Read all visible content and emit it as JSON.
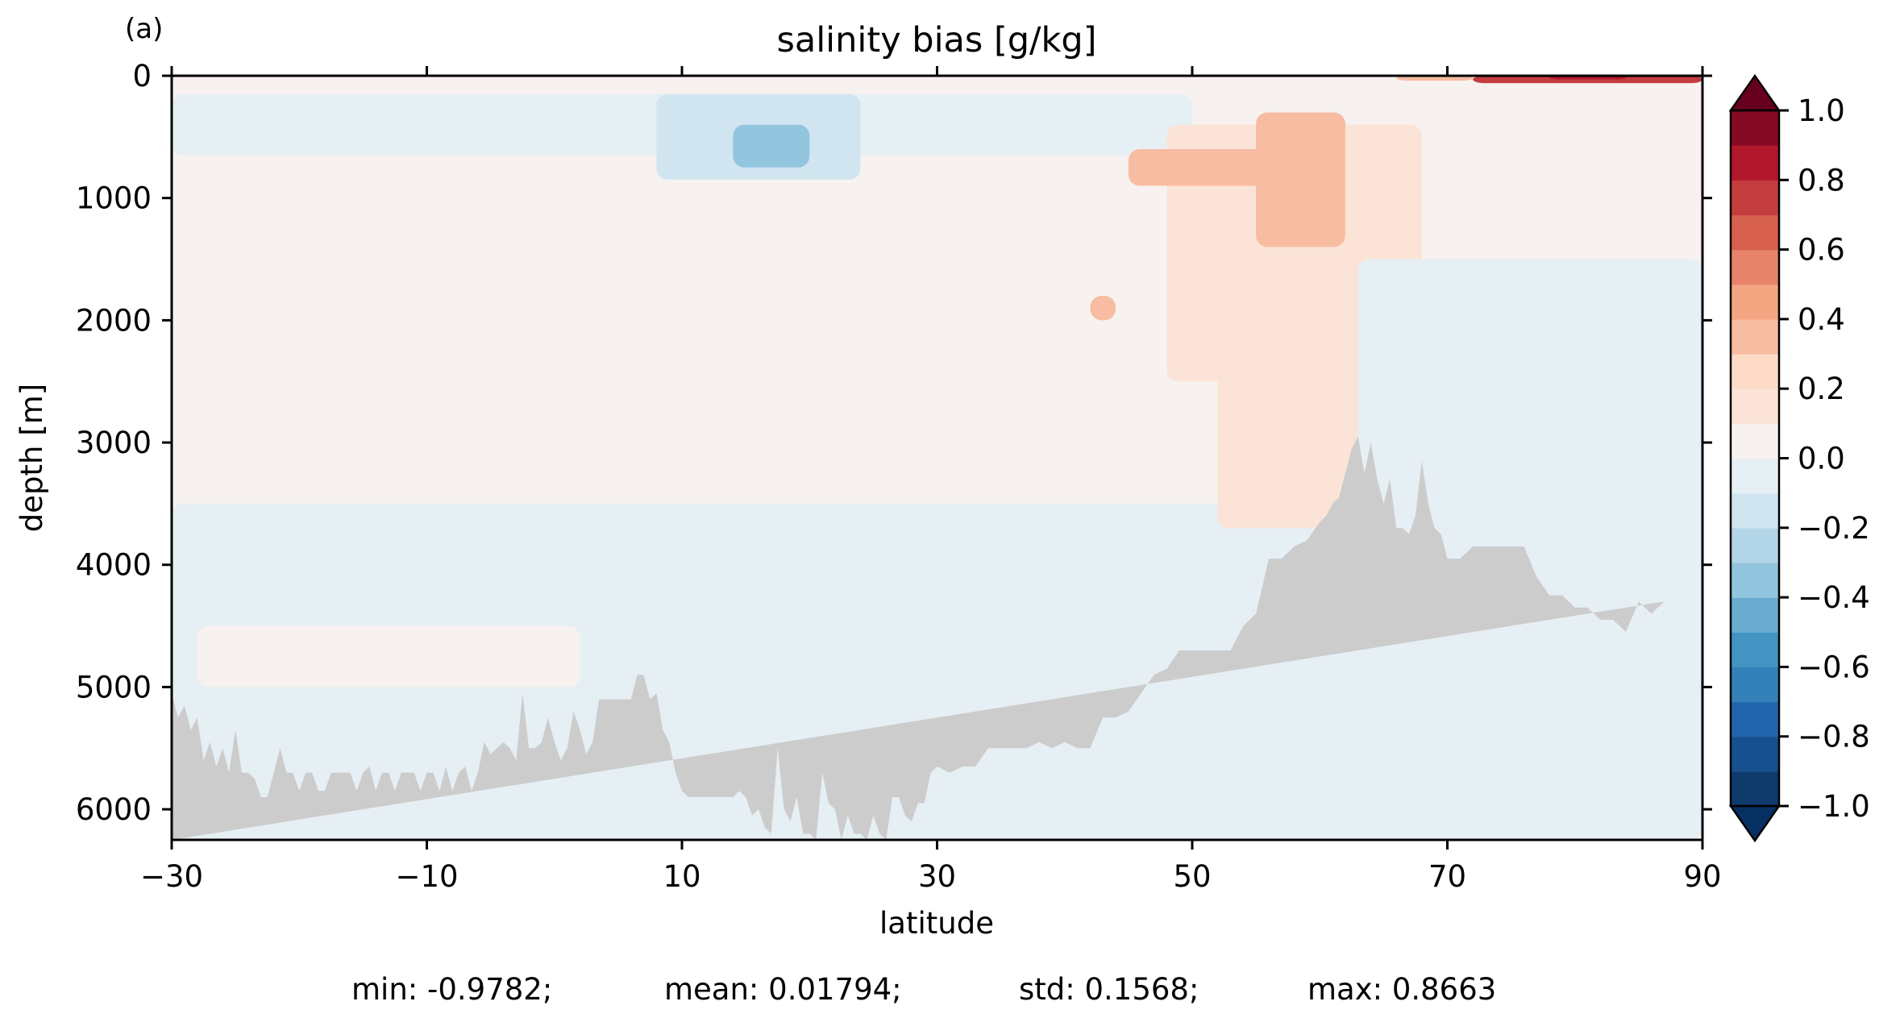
{
  "panel_label": "(a)",
  "chart_data": {
    "type": "heatmap",
    "title": "salinity bias [g/kg]",
    "xlabel": "latitude",
    "ylabel": "depth [m]",
    "xlim": [
      -30,
      90
    ],
    "ylim": [
      6250,
      0
    ],
    "y_inverted": true,
    "xticks": [
      -30,
      -10,
      10,
      30,
      50,
      70,
      90
    ],
    "xtick_labels": [
      "−30",
      "−10",
      "10",
      "30",
      "50",
      "70",
      "90"
    ],
    "yticks": [
      0,
      1000,
      2000,
      3000,
      4000,
      5000,
      6000
    ],
    "ytick_labels": [
      "0",
      "1000",
      "2000",
      "3000",
      "4000",
      "5000",
      "6000"
    ],
    "colorbar": {
      "colormap": "RdBu_r",
      "levels": [
        -1.0,
        -0.9,
        -0.8,
        -0.7,
        -0.6,
        -0.5,
        -0.4,
        -0.3,
        -0.2,
        -0.1,
        0.0,
        0.1,
        0.2,
        0.3,
        0.4,
        0.5,
        0.6,
        0.7,
        0.8,
        0.9,
        1.0
      ],
      "extend": "both",
      "ticks": [
        1.0,
        0.8,
        0.6,
        0.4,
        0.2,
        0.0,
        -0.2,
        -0.4,
        -0.6,
        -0.8,
        -1.0
      ],
      "tick_labels": [
        "1.0",
        "0.8",
        "0.6",
        "0.4",
        "0.2",
        "0.0",
        "−0.2",
        "−0.4",
        "−0.6",
        "−0.8",
        "−1.0"
      ],
      "colors": [
        "#0f3a6c",
        "#17508f",
        "#2166ac",
        "#3480b9",
        "#4393c3",
        "#6aacd0",
        "#92c5de",
        "#b3d5e8",
        "#d1e5f0",
        "#e6eff4",
        "#f7f2ef",
        "#fbe4d7",
        "#fddbc7",
        "#f8bca2",
        "#f4a582",
        "#e7836b",
        "#d6604d",
        "#c33d3f",
        "#b2182b",
        "#870a24"
      ],
      "over_color": "#67001f",
      "under_color": "#053061"
    },
    "land_color": "#cccccc",
    "bathymetry": {
      "lat": [
        -30,
        -29.5,
        -29,
        -28.5,
        -28,
        -27.5,
        -27,
        -26.5,
        -26,
        -25.5,
        -25,
        -24.5,
        -24,
        -23.5,
        -23,
        -22.5,
        -22,
        -21.5,
        -21,
        -20.5,
        -20,
        -19.5,
        -19,
        -18.5,
        -18,
        -17.5,
        -17,
        -16.5,
        -16,
        -15.5,
        -15,
        -14.5,
        -14,
        -13.5,
        -13,
        -12.5,
        -12,
        -11.5,
        -11,
        -10.5,
        -10,
        -9.5,
        -9,
        -8.5,
        -8,
        -7.5,
        -7,
        -6.5,
        -6,
        -5.5,
        -5,
        -4.5,
        -4,
        -3.5,
        -3,
        -2.5,
        -2,
        -1.5,
        -1,
        -0.5,
        0,
        0.5,
        1,
        1.5,
        2,
        2.5,
        3,
        3.5,
        4,
        4.5,
        5,
        5.5,
        6,
        6.5,
        7,
        7.5,
        8,
        8.5,
        9,
        9.5,
        10,
        10.5,
        11,
        11.5,
        12,
        12.5,
        13,
        13.5,
        14,
        14.5,
        15,
        15.5,
        16,
        16.5,
        17,
        17.5,
        18,
        18.5,
        19,
        19.5,
        20,
        20.5,
        21,
        21.5,
        22,
        22.5,
        23,
        23.5,
        24,
        24.5,
        25,
        25.5,
        26,
        26.5,
        27,
        27.5,
        28,
        28.5,
        29,
        29.5,
        30,
        31,
        32,
        33,
        34,
        35,
        36,
        37,
        38,
        39,
        40,
        41,
        42,
        43,
        44,
        45,
        46,
        47,
        48,
        49,
        50,
        51,
        52,
        53,
        54,
        55,
        56,
        57,
        58,
        59,
        60,
        60.5,
        61,
        61.5,
        62,
        62.5,
        63,
        63.5,
        64,
        64.5,
        65,
        65.5,
        66,
        66.5,
        67,
        67.5,
        68,
        68.5,
        69,
        69.5,
        70,
        71,
        72,
        73,
        74,
        75,
        76,
        77,
        78,
        79,
        80,
        81,
        82,
        83,
        84,
        85,
        86,
        87,
        88,
        89,
        90
      ],
      "depth": [
        5050,
        5250,
        5150,
        5350,
        5250,
        5600,
        5450,
        5650,
        5500,
        5700,
        5350,
        5700,
        5700,
        5750,
        5900,
        5900,
        5700,
        5500,
        5700,
        5700,
        5850,
        5700,
        5700,
        5850,
        5850,
        5700,
        5700,
        5700,
        5700,
        5850,
        5700,
        5650,
        5850,
        5700,
        5700,
        5850,
        5700,
        5700,
        5700,
        5850,
        5700,
        5700,
        5850,
        5650,
        5850,
        5700,
        5650,
        5850,
        5700,
        5450,
        5550,
        5500,
        5450,
        5500,
        5600,
        5050,
        5500,
        5500,
        5450,
        5250,
        5450,
        5600,
        5500,
        5200,
        5350,
        5550,
        5450,
        5100,
        5100,
        5100,
        5100,
        5100,
        5100,
        4900,
        4900,
        5100,
        5050,
        5350,
        5450,
        5700,
        5850,
        5900,
        5900,
        5900,
        5900,
        5900,
        5900,
        5900,
        5900,
        5850,
        5900,
        6050,
        6000,
        6150,
        6200,
        5500,
        6000,
        6100,
        5900,
        6200,
        6200,
        6250,
        5700,
        5950,
        6000,
        6250,
        6050,
        6200,
        6200,
        6250,
        6050,
        6200,
        6250,
        5900,
        5900,
        6050,
        6100,
        5950,
        5950,
        5700,
        5650,
        5700,
        5650,
        5650,
        5500,
        5500,
        5500,
        5500,
        5450,
        5500,
        5450,
        5500,
        5500,
        5250,
        5250,
        5200,
        5050,
        4900,
        4850,
        4700,
        4700,
        4700,
        4700,
        4700,
        4500,
        4400,
        3950,
        3950,
        3850,
        3800,
        3650,
        3600,
        3500,
        3450,
        3250,
        3050,
        2950,
        3250,
        3000,
        3300,
        3500,
        3300,
        3700,
        3700,
        3750,
        3600,
        3150,
        3500,
        3700,
        3750,
        3950,
        3950,
        3850,
        3850,
        3850,
        3850,
        3850,
        4100,
        4250,
        4250,
        4350,
        4350,
        4450,
        4450,
        4550,
        4300,
        4400,
        4300
      ],
      "_ignore_marker": ""
    },
    "summary": {
      "min": "min: -0.9782;",
      "mean": "mean: 0.01794;",
      "std": "std: 0.1568;",
      "max": "max: 0.8663"
    },
    "field_features": [
      {
        "region": "background upper ocean (-30..10 N, 700-3000 m)",
        "value": 0.05
      },
      {
        "region": "near-surface (-30..30 N, 200-600 m)",
        "value": -0.1
      },
      {
        "region": "subtropical lens (8..24 N, 150-850 m)",
        "value": -0.2
      },
      {
        "region": "deep ocean (-30..90 N, 3500-6000 m)",
        "value": -0.05
      },
      {
        "region": "mid-latitude tongue (50..65 N, 500-3700 m)",
        "value": 0.2
      },
      {
        "region": "subpolar core (55..62 N, 300-1400 m)",
        "value": 0.3
      },
      {
        "region": "eddy near 43 N, 2000 m",
        "value": 0.4
      },
      {
        "region": "Arctic surface (72..90 N, 0-100 m)",
        "value": 0.8
      },
      {
        "region": "Arctic deep (63..90 N, 1500-4500 m)",
        "value": -0.05
      }
    ]
  }
}
